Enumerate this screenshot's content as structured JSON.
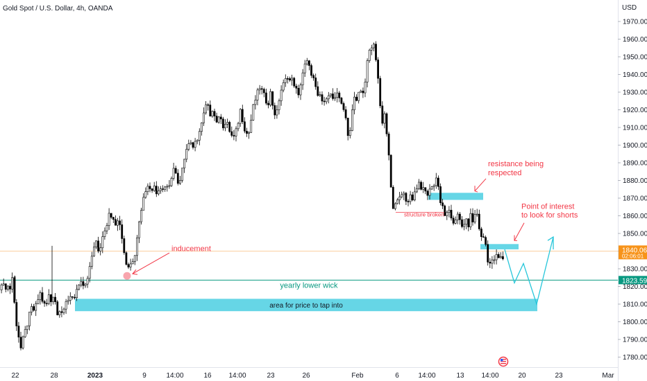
{
  "header": {
    "title": "Gold Spot / U.S. Dollar, 4h, OANDA"
  },
  "chart_data": {
    "type": "candlestick",
    "title": "Gold Spot / U.S. Dollar, 4h, OANDA",
    "currency": "USD",
    "ylim": [
      1775,
      1980
    ],
    "y_ticks": [
      1780,
      1790,
      1800,
      1810,
      1820,
      1830,
      1840,
      1850,
      1860,
      1870,
      1880,
      1890,
      1900,
      1910,
      1920,
      1930,
      1940,
      1950,
      1960,
      1970
    ],
    "y_tick_labels": [
      "1780.000",
      "1790.000",
      "1800.000",
      "1810.000",
      "1820.000",
      "1830.000",
      "1840.000",
      "1850.000",
      "1860.000",
      "1870.000",
      "1880.000",
      "1890.000",
      "1900.000",
      "1910.000",
      "1920.000",
      "1930.000",
      "1940.000",
      "1950.000",
      "1960.000",
      "1970.000"
    ],
    "x_tick_labels": [
      "22",
      "28",
      "2023",
      "9",
      "14:00",
      "16",
      "14:00",
      "23",
      "26",
      "Feb",
      "6",
      "14:00",
      "13",
      "14:00",
      "20",
      "23",
      "Mar"
    ],
    "price_anchors": [
      [
        0,
        1818
      ],
      [
        4,
        1823
      ],
      [
        8,
        1819
      ],
      [
        12,
        1821
      ],
      [
        16,
        1818
      ],
      [
        20,
        1826
      ],
      [
        24,
        1803
      ],
      [
        28,
        1794
      ],
      [
        32,
        1785
      ],
      [
        36,
        1791
      ],
      [
        40,
        1797
      ],
      [
        44,
        1803
      ],
      [
        48,
        1808
      ],
      [
        52,
        1806
      ],
      [
        56,
        1812
      ],
      [
        60,
        1816
      ],
      [
        64,
        1811
      ],
      [
        68,
        1808
      ],
      [
        72,
        1815
      ],
      [
        76,
        1811
      ],
      [
        80,
        1818
      ],
      [
        84,
        1803
      ],
      [
        88,
        1808
      ],
      [
        92,
        1806
      ],
      [
        96,
        1809
      ],
      [
        100,
        1811
      ],
      [
        104,
        1816
      ],
      [
        108,
        1813
      ],
      [
        112,
        1818
      ],
      [
        116,
        1819
      ],
      [
        120,
        1822
      ],
      [
        124,
        1819
      ],
      [
        128,
        1824
      ],
      [
        132,
        1831
      ],
      [
        136,
        1842
      ],
      [
        140,
        1846
      ],
      [
        144,
        1838
      ],
      [
        148,
        1845
      ],
      [
        152,
        1852
      ],
      [
        156,
        1856
      ],
      [
        160,
        1864
      ],
      [
        164,
        1858
      ],
      [
        168,
        1854
      ],
      [
        172,
        1858
      ],
      [
        176,
        1851
      ],
      [
        180,
        1842
      ],
      [
        184,
        1833
      ],
      [
        188,
        1832
      ],
      [
        192,
        1836
      ],
      [
        196,
        1835
      ],
      [
        200,
        1852
      ],
      [
        204,
        1862
      ],
      [
        208,
        1869
      ],
      [
        212,
        1875
      ],
      [
        216,
        1878
      ],
      [
        220,
        1874
      ],
      [
        224,
        1877
      ],
      [
        228,
        1873
      ],
      [
        232,
        1878
      ],
      [
        236,
        1874
      ],
      [
        240,
        1878
      ],
      [
        244,
        1875
      ],
      [
        248,
        1882
      ],
      [
        252,
        1886
      ],
      [
        256,
        1884
      ],
      [
        260,
        1877
      ],
      [
        264,
        1888
      ],
      [
        268,
        1893
      ],
      [
        272,
        1900
      ],
      [
        276,
        1903
      ],
      [
        280,
        1897
      ],
      [
        284,
        1902
      ],
      [
        288,
        1906
      ],
      [
        292,
        1911
      ],
      [
        296,
        1918
      ],
      [
        300,
        1924
      ],
      [
        304,
        1917
      ],
      [
        308,
        1921
      ],
      [
        312,
        1915
      ],
      [
        316,
        1913
      ],
      [
        320,
        1917
      ],
      [
        324,
        1910
      ],
      [
        328,
        1913
      ],
      [
        332,
        1909
      ],
      [
        336,
        1905
      ],
      [
        340,
        1904
      ],
      [
        344,
        1911
      ],
      [
        348,
        1920
      ],
      [
        352,
        1914
      ],
      [
        356,
        1907
      ],
      [
        360,
        1906
      ],
      [
        364,
        1915
      ],
      [
        368,
        1924
      ],
      [
        372,
        1928
      ],
      [
        376,
        1933
      ],
      [
        380,
        1930
      ],
      [
        384,
        1926
      ],
      [
        388,
        1924
      ],
      [
        392,
        1930
      ],
      [
        396,
        1920
      ],
      [
        400,
        1916
      ],
      [
        404,
        1926
      ],
      [
        408,
        1933
      ],
      [
        412,
        1935
      ],
      [
        416,
        1940
      ],
      [
        420,
        1936
      ],
      [
        424,
        1937
      ],
      [
        428,
        1932
      ],
      [
        432,
        1927
      ],
      [
        436,
        1938
      ],
      [
        440,
        1944
      ],
      [
        444,
        1947
      ],
      [
        448,
        1943
      ],
      [
        452,
        1940
      ],
      [
        456,
        1933
      ],
      [
        460,
        1926
      ],
      [
        464,
        1929
      ],
      [
        468,
        1921
      ],
      [
        472,
        1928
      ],
      [
        476,
        1930
      ],
      [
        480,
        1927
      ],
      [
        484,
        1925
      ],
      [
        488,
        1928
      ],
      [
        492,
        1926
      ],
      [
        496,
        1923
      ],
      [
        500,
        1914
      ],
      [
        504,
        1903
      ],
      [
        508,
        1915
      ],
      [
        512,
        1929
      ],
      [
        516,
        1925
      ],
      [
        520,
        1931
      ],
      [
        524,
        1928
      ],
      [
        528,
        1935
      ],
      [
        532,
        1954
      ],
      [
        536,
        1952
      ],
      [
        540,
        1957
      ],
      [
        544,
        1947
      ],
      [
        548,
        1932
      ],
      [
        552,
        1912
      ],
      [
        556,
        1916
      ],
      [
        560,
        1904
      ],
      [
        564,
        1882
      ],
      [
        568,
        1863
      ],
      [
        572,
        1866
      ],
      [
        576,
        1874
      ],
      [
        580,
        1870
      ],
      [
        584,
        1872
      ],
      [
        588,
        1867
      ],
      [
        592,
        1872
      ],
      [
        596,
        1870
      ],
      [
        600,
        1874
      ],
      [
        604,
        1879
      ],
      [
        608,
        1874
      ],
      [
        612,
        1877
      ],
      [
        616,
        1871
      ],
      [
        620,
        1875
      ],
      [
        624,
        1876
      ],
      [
        628,
        1879
      ],
      [
        632,
        1883
      ],
      [
        636,
        1866
      ],
      [
        640,
        1865
      ],
      [
        644,
        1859
      ],
      [
        648,
        1862
      ],
      [
        652,
        1859
      ],
      [
        656,
        1856
      ],
      [
        660,
        1861
      ],
      [
        664,
        1857
      ],
      [
        668,
        1853
      ],
      [
        672,
        1858
      ],
      [
        676,
        1854
      ],
      [
        680,
        1860
      ],
      [
        684,
        1856
      ],
      [
        688,
        1864
      ],
      [
        692,
        1854
      ],
      [
        696,
        1846
      ],
      [
        700,
        1849
      ],
      [
        704,
        1836
      ],
      [
        708,
        1833
      ],
      [
        712,
        1834
      ],
      [
        716,
        1837
      ],
      [
        720,
        1836
      ],
      [
        724,
        1836
      ]
    ],
    "annotations": [
      {
        "text": "inducement",
        "kind": "arrow-label"
      },
      {
        "text": "yearly lower wick",
        "kind": "horizontal-line",
        "price": 1823.598
      },
      {
        "text": "area for price to tap into",
        "kind": "zone",
        "from": 1806,
        "to": 1813
      },
      {
        "text": "resistance being",
        "kind": "label-line1"
      },
      {
        "text": "respected",
        "kind": "label-line2"
      },
      {
        "text": "structure broken",
        "kind": "label"
      },
      {
        "text": "Point of interest",
        "kind": "label-line1"
      },
      {
        "text": "to look for shorts",
        "kind": "label-line2"
      }
    ],
    "last_price": {
      "value": "1840.065",
      "countdown": "02:06:01"
    },
    "line_price": {
      "value": "1823.598"
    },
    "zones": [
      {
        "name": "resistance-zone",
        "from": 1869,
        "to": 1873
      },
      {
        "name": "poi-zone",
        "from": 1841,
        "to": 1844
      },
      {
        "name": "tap-zone",
        "from": 1806,
        "to": 1813
      }
    ],
    "colors": {
      "candle": "#000000",
      "zone": "#66d6e6",
      "annotation_red": "#f23645",
      "yearly_line": "#089981",
      "last_price_bg": "#f7931a",
      "projection": "#26c6da"
    }
  }
}
